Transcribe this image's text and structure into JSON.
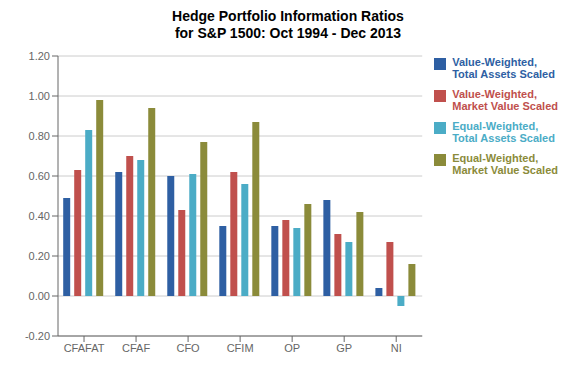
{
  "chart_data": {
    "type": "bar",
    "title": "Hedge Portfolio Information Ratios",
    "subtitle": "for S&P 1500: Oct 1994 - Dec 2013",
    "categories": [
      "CFAFAT",
      "CFAF",
      "CFO",
      "CFIM",
      "OP",
      "GP",
      "NI"
    ],
    "series": [
      {
        "name": "Value-Weighted,\nTotal Assets Scaled",
        "color": "#2E5FA3",
        "values": [
          0.49,
          0.62,
          0.6,
          0.35,
          0.35,
          0.48,
          0.04
        ]
      },
      {
        "name": "Value-Weighted,\nMarket Value Scaled",
        "color": "#C0504D",
        "values": [
          0.63,
          0.7,
          0.43,
          0.62,
          0.38,
          0.31,
          0.27
        ]
      },
      {
        "name": "Equal-Weighted,\nTotal Assets Scaled",
        "color": "#4BACC6",
        "values": [
          0.83,
          0.68,
          0.61,
          0.56,
          0.34,
          0.27,
          -0.05
        ]
      },
      {
        "name": "Equal-Weighted,\nMarket Value Scaled",
        "color": "#8B8B3A",
        "values": [
          0.98,
          0.94,
          0.77,
          0.87,
          0.46,
          0.42,
          0.16
        ]
      }
    ],
    "ylim": [
      -0.2,
      1.2
    ],
    "yticks": [
      {
        "value": -0.2,
        "label": "-0.20"
      },
      {
        "value": 0.0,
        "label": "0.00"
      },
      {
        "value": 0.2,
        "label": "0.20"
      },
      {
        "value": 0.4,
        "label": "0.40"
      },
      {
        "value": 0.6,
        "label": "0.60"
      },
      {
        "value": 0.8,
        "label": "0.80"
      },
      {
        "value": 1.0,
        "label": "1.00"
      },
      {
        "value": 1.2,
        "label": "1.20"
      }
    ],
    "grid": true,
    "legend": "upper right"
  }
}
